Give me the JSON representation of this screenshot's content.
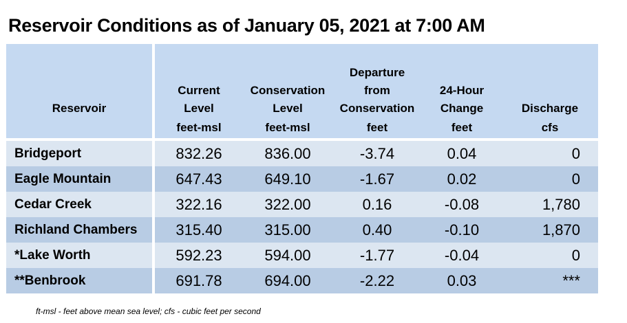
{
  "title": "Reservoir Conditions as of January 05, 2021 at 7:00 AM",
  "columns": [
    {
      "lines": [
        "Reservoir"
      ],
      "unit": ""
    },
    {
      "lines": [
        "Current",
        "Level"
      ],
      "unit": "feet-msl"
    },
    {
      "lines": [
        "Conservation",
        "Level"
      ],
      "unit": "feet-msl"
    },
    {
      "lines": [
        "Departure",
        "from",
        "Conservation"
      ],
      "unit": "feet"
    },
    {
      "lines": [
        "24-Hour",
        "Change"
      ],
      "unit": "feet"
    },
    {
      "lines": [
        "Discharge"
      ],
      "unit": "cfs"
    }
  ],
  "rows": [
    {
      "name": "Bridgeport",
      "current": "832.26",
      "conservation": "836.00",
      "departure": "-3.74",
      "change": "0.04",
      "discharge": "0"
    },
    {
      "name": "Eagle Mountain",
      "current": "647.43",
      "conservation": "649.10",
      "departure": "-1.67",
      "change": "0.02",
      "discharge": "0"
    },
    {
      "name": "Cedar Creek",
      "current": "322.16",
      "conservation": "322.00",
      "departure": "0.16",
      "change": "-0.08",
      "discharge": "1,780"
    },
    {
      "name": "Richland Chambers",
      "current": "315.40",
      "conservation": "315.00",
      "departure": "0.40",
      "change": "-0.10",
      "discharge": "1,870"
    },
    {
      "name": "*Lake Worth",
      "current": "592.23",
      "conservation": "594.00",
      "departure": "-1.77",
      "change": "-0.04",
      "discharge": "0"
    },
    {
      "name": "**Benbrook",
      "current": "691.78",
      "conservation": "694.00",
      "departure": "-2.22",
      "change": "0.03",
      "discharge": "***"
    }
  ],
  "footnote": "ft-msl - feet above mean sea level; cfs - cubic feet per second",
  "colors": {
    "header_bg": "#c5d9f1",
    "row_light": "#dce6f1",
    "row_dark": "#b8cce4"
  }
}
